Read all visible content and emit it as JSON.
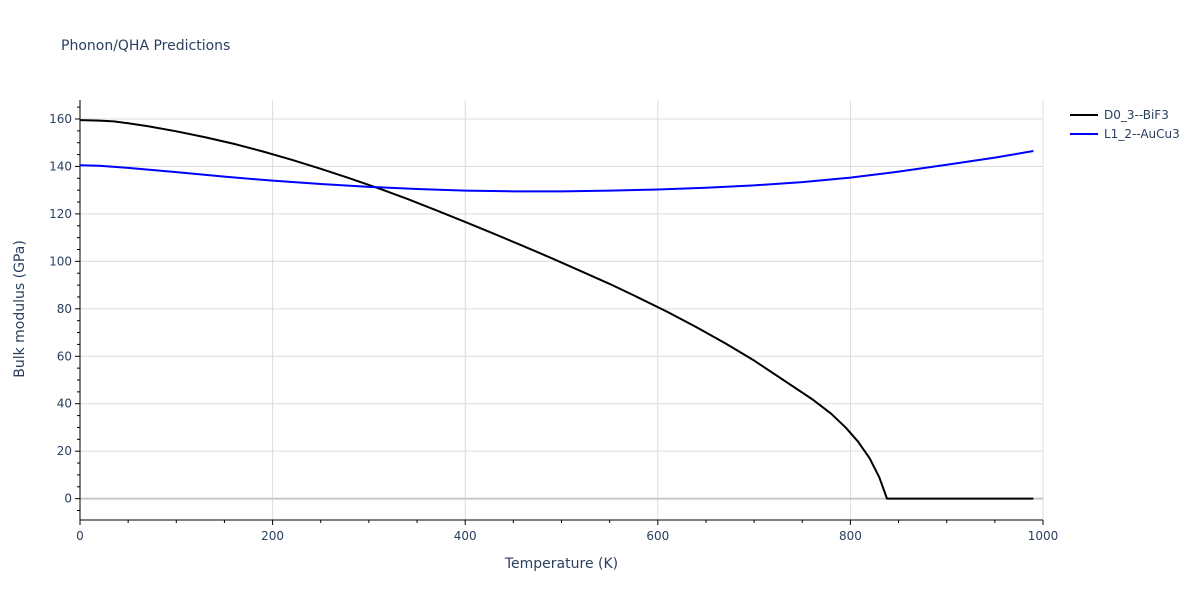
{
  "chart_data": {
    "type": "line",
    "title": "Phonon/QHA Predictions",
    "xlabel": "Temperature (K)",
    "ylabel": "Bulk modulus (GPa)",
    "xlim": [
      0,
      1000
    ],
    "ylim": [
      -9,
      168
    ],
    "xticks": [
      0,
      200,
      400,
      600,
      800,
      1000
    ],
    "yticks": [
      0,
      20,
      40,
      60,
      80,
      100,
      120,
      140,
      160
    ],
    "grid": true,
    "legend_position": "top-right",
    "series": [
      {
        "name": "D0_3--BiF3",
        "color": "#000000",
        "x": [
          0,
          20,
          35,
          50,
          70,
          100,
          130,
          160,
          190,
          220,
          250,
          280,
          310,
          340,
          370,
          400,
          430,
          460,
          490,
          520,
          550,
          580,
          610,
          640,
          670,
          700,
          730,
          760,
          780,
          795,
          808,
          820,
          830,
          838,
          845,
          900,
          990
        ],
        "y": [
          159.5,
          159.3,
          159,
          158.2,
          157,
          154.8,
          152.3,
          149.5,
          146.3,
          142.8,
          139,
          135,
          130.8,
          126.3,
          121.5,
          116.6,
          111.6,
          106.5,
          101.3,
          95.9,
          90.5,
          84.7,
          78.7,
          72.3,
          65.5,
          58.2,
          50.1,
          42,
          35.8,
          30,
          24,
          17,
          9,
          0,
          0,
          0,
          0
        ]
      },
      {
        "name": "L1_2--AuCu3",
        "color": "#0000ff",
        "x": [
          0,
          20,
          50,
          100,
          150,
          200,
          250,
          300,
          350,
          400,
          450,
          500,
          550,
          600,
          650,
          700,
          750,
          800,
          850,
          900,
          950,
          990
        ],
        "y": [
          140.5,
          140.3,
          139.4,
          137.6,
          135.7,
          134,
          132.6,
          131.4,
          130.5,
          129.8,
          129.5,
          129.5,
          129.8,
          130.3,
          131,
          132,
          133.4,
          135.3,
          137.8,
          140.7,
          143.7,
          146.5
        ]
      }
    ]
  }
}
